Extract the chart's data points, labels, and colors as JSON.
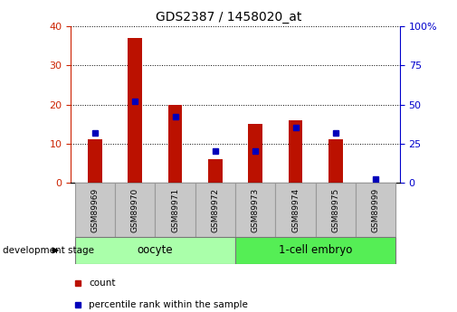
{
  "title": "GDS2387 / 1458020_at",
  "samples": [
    "GSM89969",
    "GSM89970",
    "GSM89971",
    "GSM89972",
    "GSM89973",
    "GSM89974",
    "GSM89975",
    "GSM89999"
  ],
  "counts": [
    11,
    37,
    20,
    6,
    15,
    16,
    11,
    0
  ],
  "percentile_ranks": [
    32,
    52,
    42,
    20,
    20,
    35,
    32,
    2
  ],
  "groups": [
    {
      "label": "oocyte",
      "indices": [
        0,
        1,
        2,
        3
      ],
      "color": "#90EE90"
    },
    {
      "label": "1-cell embryo",
      "indices": [
        4,
        5,
        6,
        7
      ],
      "color": "#66DD66"
    }
  ],
  "left_ylim": [
    0,
    40
  ],
  "right_ylim": [
    0,
    100
  ],
  "left_yticks": [
    0,
    10,
    20,
    30,
    40
  ],
  "right_yticks": [
    0,
    25,
    50,
    75,
    100
  ],
  "right_yticklabels": [
    "0",
    "25",
    "50",
    "75",
    "100%"
  ],
  "bar_color": "#BB1100",
  "dot_color": "#0000BB",
  "bar_width": 0.35,
  "grid_color": "#000000",
  "background_color": "#FFFFFF",
  "plot_bg_color": "#FFFFFF",
  "dev_stage_label": "development stage",
  "legend_count_label": "count",
  "legend_pct_label": "percentile rank within the sample",
  "label_box_color": "#C8C8C8",
  "oocyte_color": "#AAFFAA",
  "embryo_color": "#55EE55"
}
